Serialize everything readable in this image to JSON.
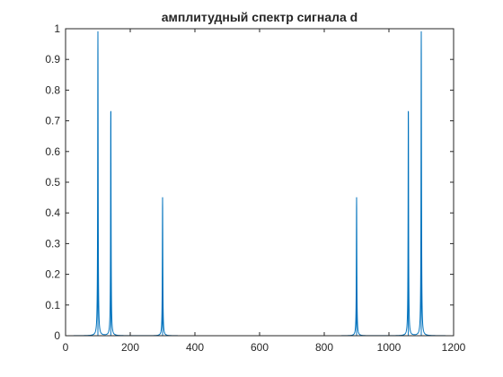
{
  "chart_data": {
    "type": "line",
    "title": "амплитудный спектр сигнала d",
    "xlabel": "",
    "ylabel": "",
    "xlim": [
      0,
      1200
    ],
    "ylim": [
      0,
      1
    ],
    "xticks": [
      0,
      200,
      400,
      600,
      800,
      1000,
      1200
    ],
    "yticks": [
      0,
      0.1,
      0.2,
      0.3,
      0.4,
      0.5,
      0.6,
      0.7,
      0.8,
      0.9,
      1
    ],
    "xtick_labels": [
      "0",
      "200",
      "400",
      "600",
      "800",
      "1000",
      "1200"
    ],
    "ytick_labels": [
      "0",
      "0.1",
      "0.2",
      "0.3",
      "0.4",
      "0.5",
      "0.6",
      "0.7",
      "0.8",
      "0.9",
      "1"
    ],
    "grid": false,
    "series": [
      {
        "color": "#0072bd",
        "peaks": [
          {
            "x": 100,
            "y": 0.99
          },
          {
            "x": 140,
            "y": 0.73
          },
          {
            "x": 300,
            "y": 0.45
          },
          {
            "x": 900,
            "y": 0.45
          },
          {
            "x": 1060,
            "y": 0.73
          },
          {
            "x": 1100,
            "y": 0.99
          }
        ]
      }
    ]
  }
}
